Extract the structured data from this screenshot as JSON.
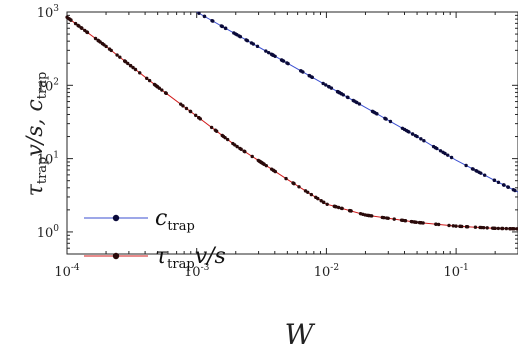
{
  "chart_data": {
    "type": "line",
    "xscale": "log",
    "yscale": "log",
    "xlim": [
      0.0001,
      0.3
    ],
    "ylim": [
      0.5,
      1000
    ],
    "xlabel": "W",
    "ylabel": "τ_trap v/s, c_trap",
    "x_ticks": [
      {
        "base": "10",
        "exp": "-4",
        "value": 0.0001
      },
      {
        "base": "10",
        "exp": "-3",
        "value": 0.001
      },
      {
        "base": "10",
        "exp": "-2",
        "value": 0.01
      },
      {
        "base": "10",
        "exp": "-1",
        "value": 0.1
      }
    ],
    "y_ticks": [
      {
        "base": "10",
        "exp": "0",
        "value": 1
      },
      {
        "base": "10",
        "exp": "1",
        "value": 10
      },
      {
        "base": "10",
        "exp": "2",
        "value": 100
      },
      {
        "base": "10",
        "exp": "3",
        "value": 1000
      }
    ],
    "legend_position": "bottom-left",
    "series": [
      {
        "name": "c_trap",
        "label_main": "c",
        "label_sub": "trap",
        "label_tail": "",
        "line_color": "#3b4fd1",
        "marker_color": "#0a0a3a",
        "x": [
          0.001,
          0.002,
          0.005,
          0.01,
          0.02,
          0.05,
          0.1,
          0.2,
          0.3
        ],
        "y": [
          1000,
          500,
          200,
          100,
          50,
          20,
          9.5,
          5,
          3.5
        ]
      },
      {
        "name": "τ_trap v/s",
        "label_main": "τ",
        "label_sub": "trap",
        "label_tail": "v/s",
        "line_color": "#d11a1a",
        "marker_color": "#2a0a0a",
        "x": [
          0.0001,
          0.0002,
          0.0005,
          0.001,
          0.002,
          0.005,
          0.01,
          0.02,
          0.05,
          0.1,
          0.2,
          0.3
        ],
        "y": [
          850,
          340,
          95,
          38,
          15,
          5.2,
          2.4,
          1.7,
          1.35,
          1.2,
          1.12,
          1.1
        ]
      }
    ]
  }
}
